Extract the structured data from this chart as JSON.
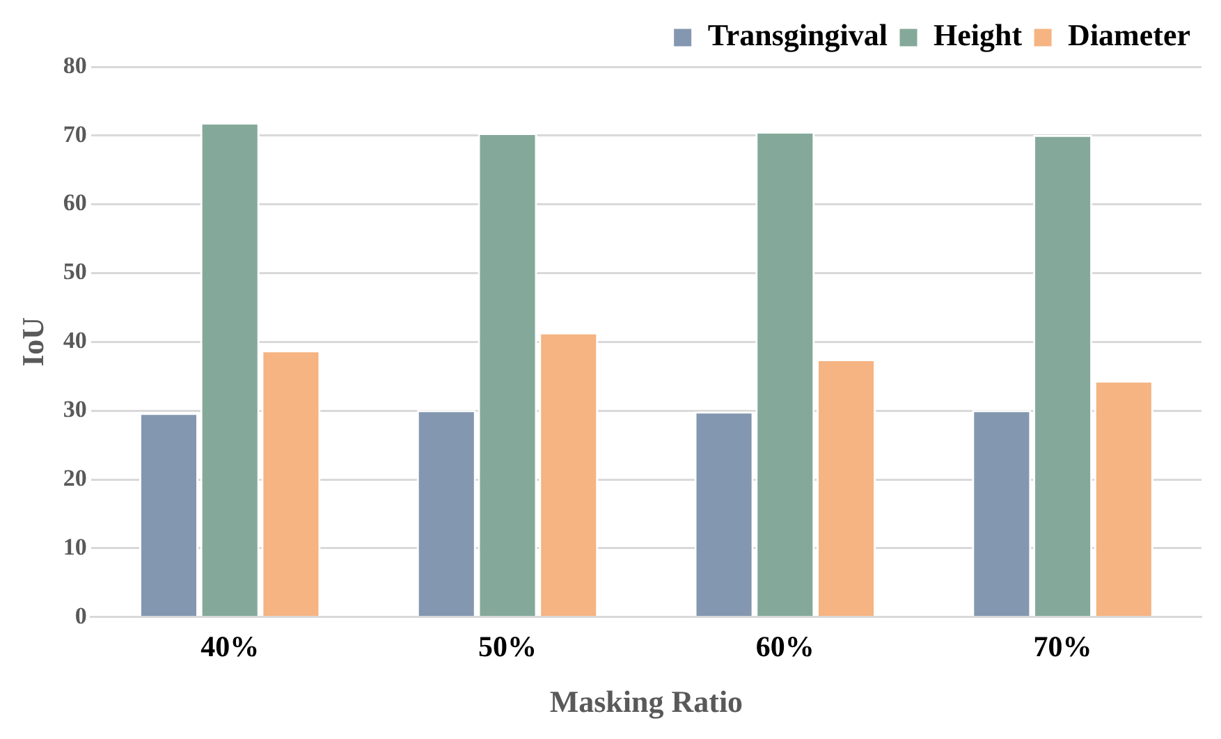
{
  "chart_data": {
    "type": "bar",
    "xlabel": "Masking Ratio",
    "ylabel": "IoU",
    "categories": [
      "40%",
      "50%",
      "60%",
      "70%"
    ],
    "series": [
      {
        "name": "Transgingival",
        "color": "#8497b0",
        "values": [
          29.7,
          30.1,
          29.9,
          30.1
        ]
      },
      {
        "name": "Height",
        "color": "#84a99a",
        "values": [
          71.9,
          70.4,
          70.6,
          70.1
        ]
      },
      {
        "name": "Diameter",
        "color": "#f5b482",
        "values": [
          38.8,
          41.4,
          37.5,
          34.4
        ]
      }
    ],
    "ylim": [
      0,
      80
    ],
    "yticks": [
      0,
      10,
      20,
      30,
      40,
      50,
      60,
      70,
      80
    ],
    "grid": "y",
    "legend": "top right"
  }
}
